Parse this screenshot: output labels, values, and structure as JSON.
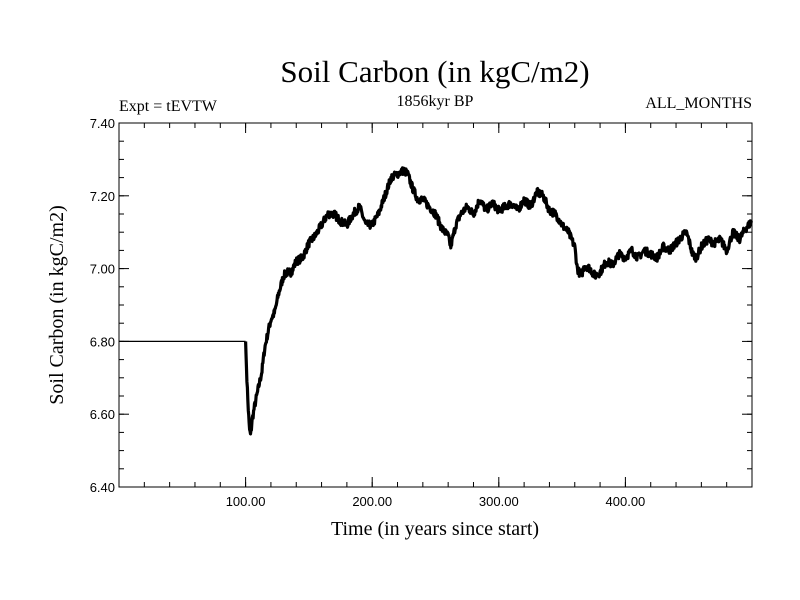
{
  "chart_data": {
    "type": "line",
    "title": "Soil Carbon (in kgC/m2)",
    "subtitle": "1856kyr BP",
    "left_label": "Expt = tEVTW",
    "right_label": "ALL_MONTHS",
    "xlabel": "Time (in years since start)",
    "ylabel": "Soil Carbon (in kgC/m2)",
    "xlim": [
      0,
      500
    ],
    "ylim": [
      6.4,
      7.4
    ],
    "x_ticks": [
      100,
      200,
      300,
      400
    ],
    "x_tick_labels": [
      "100.00",
      "200.00",
      "300.00",
      "400.00"
    ],
    "y_ticks": [
      6.4,
      6.6,
      6.8,
      7.0,
      7.2,
      7.4
    ],
    "y_tick_labels": [
      "6.40",
      "6.60",
      "6.80",
      "7.00",
      "7.20",
      "7.40"
    ],
    "grid": false,
    "series": [
      {
        "name": "Soil Carbon",
        "x": [
          0,
          99,
          100,
          100.5,
          101,
          102,
          103,
          104,
          105,
          107,
          110,
          113,
          115,
          118,
          120,
          123,
          126,
          130,
          133,
          136,
          140,
          145,
          150,
          155,
          160,
          165,
          170,
          175,
          180,
          185,
          190,
          195,
          200,
          205,
          210,
          215,
          220,
          225,
          228,
          232,
          236,
          240,
          245,
          250,
          255,
          260,
          262,
          266,
          270,
          275,
          280,
          285,
          290,
          295,
          300,
          305,
          310,
          315,
          320,
          325,
          330,
          335,
          340,
          345,
          350,
          355,
          360,
          362,
          365,
          368,
          372,
          376,
          380,
          385,
          390,
          395,
          400,
          405,
          410,
          415,
          420,
          425,
          430,
          435,
          440,
          445,
          448,
          450,
          453,
          456,
          460,
          465,
          470,
          475,
          480,
          485,
          490,
          495,
          500
        ],
        "y": [
          6.8,
          6.8,
          6.8,
          6.75,
          6.7,
          6.62,
          6.56,
          6.54,
          6.58,
          6.62,
          6.67,
          6.72,
          6.78,
          6.83,
          6.86,
          6.88,
          6.93,
          6.98,
          6.99,
          6.99,
          7.02,
          7.03,
          7.07,
          7.09,
          7.12,
          7.15,
          7.15,
          7.13,
          7.12,
          7.15,
          7.17,
          7.12,
          7.12,
          7.15,
          7.2,
          7.25,
          7.26,
          7.27,
          7.26,
          7.22,
          7.19,
          7.19,
          7.17,
          7.15,
          7.11,
          7.09,
          7.06,
          7.12,
          7.15,
          7.17,
          7.15,
          7.19,
          7.16,
          7.18,
          7.16,
          7.17,
          7.18,
          7.16,
          7.19,
          7.17,
          7.21,
          7.2,
          7.16,
          7.15,
          7.12,
          7.1,
          7.06,
          7.0,
          6.98,
          7.01,
          7.0,
          6.98,
          6.99,
          7.02,
          7.01,
          7.04,
          7.03,
          7.05,
          7.03,
          7.05,
          7.04,
          7.03,
          7.06,
          7.05,
          7.07,
          7.09,
          7.1,
          7.08,
          7.04,
          7.03,
          7.06,
          7.08,
          7.07,
          7.08,
          7.05,
          7.1,
          7.08,
          7.11,
          7.13
        ]
      }
    ]
  }
}
